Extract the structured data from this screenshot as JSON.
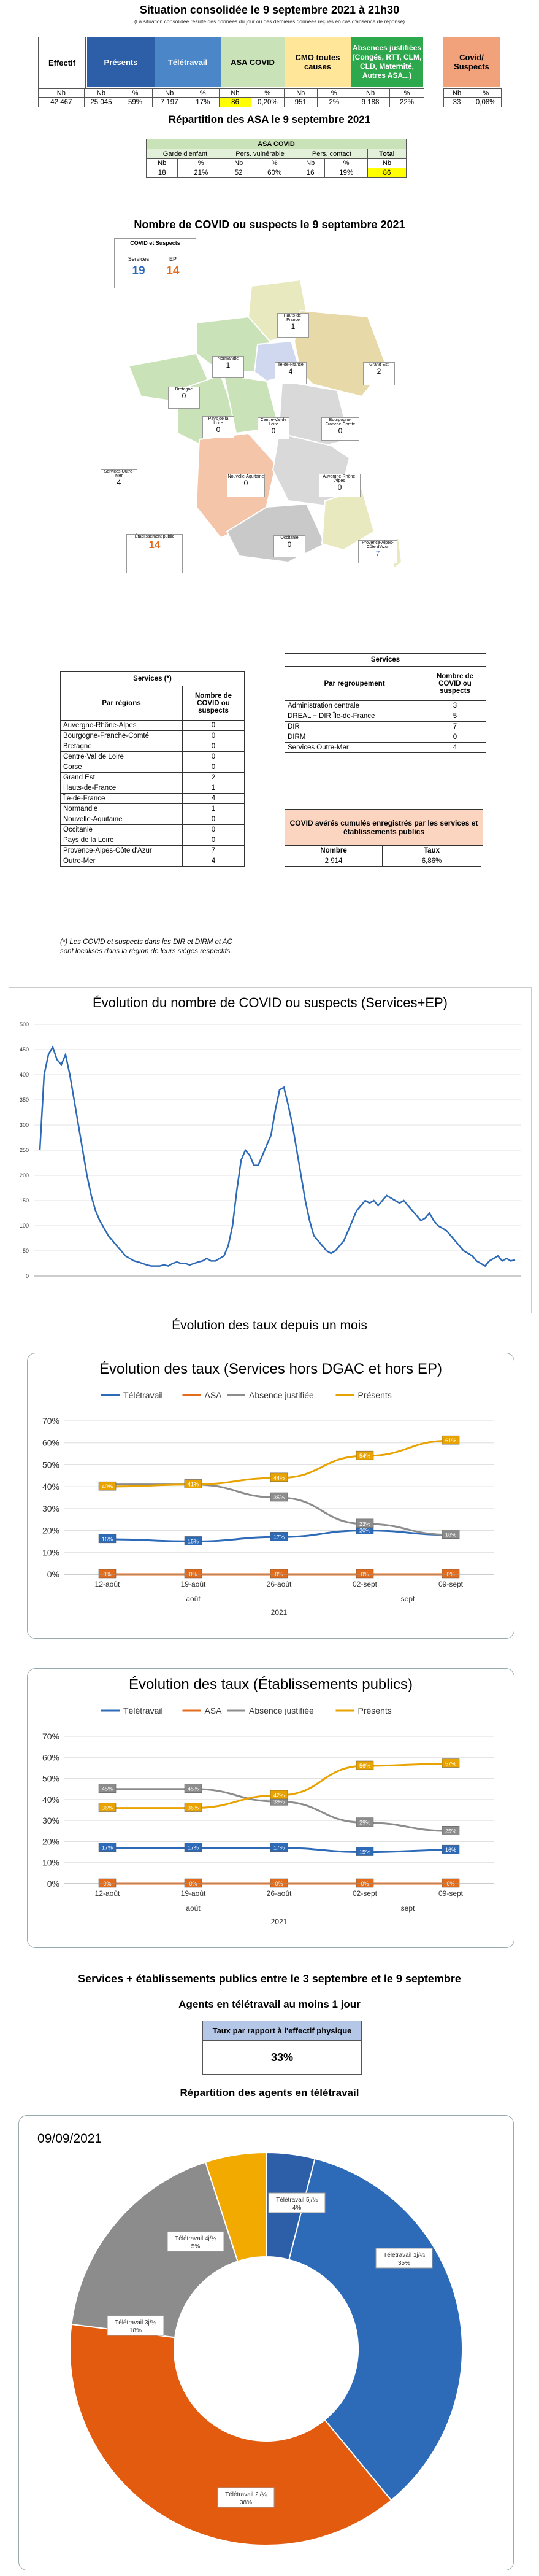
{
  "header": {
    "title": "Situation consolidée le 9 septembre 2021 à 21h30",
    "subtitle": "(La situation consolidée résulte des données du jour ou des dernières données reçues en cas d'absence de réponse)"
  },
  "summary": {
    "effectif_label": "Effectif",
    "effectif_value": "42 467",
    "presents_label": "Présents",
    "teletravail_label": "Télétravail",
    "asa_label": "ASA COVID",
    "cmo_label": "CMO toutes causes",
    "absences_label": "Absences justifiées (Congés, RTT, CLM, CLD, Maternité, Autres ASA...)",
    "covid_label": "Covid/ Suspects",
    "col_nb": "Nb",
    "col_pct": "%",
    "eff_nb": "Nb",
    "values": [
      "42 467",
      "25 045",
      "59%",
      "7 197",
      "17%",
      "86",
      "0,20%",
      "951",
      "2%",
      "9 188",
      "22%",
      "33",
      "0,08%"
    ]
  },
  "asa": {
    "title": "Répartition des ASA le 9 septembre 2021",
    "header": "ASA COVID",
    "groups": [
      "Garde d'enfant",
      "Pers. vulnérable",
      "Pers. contact",
      "Total"
    ],
    "sub": [
      "Nb",
      "%",
      "Nb",
      "%",
      "Nb",
      "%",
      "Nb"
    ],
    "values": [
      "18",
      "21%",
      "52",
      "60%",
      "16",
      "19%",
      "86"
    ]
  },
  "map": {
    "title": "Nombre de COVID ou suspects le 9 septembre 2021",
    "legend_title": "COVID et Suspects",
    "legend_services_label": "Services",
    "legend_ep_label": "EP",
    "legend_services_value": "19",
    "legend_ep_value": "14",
    "regions": [
      {
        "name": "Hauts-de-France",
        "value": "1"
      },
      {
        "name": "Normandie",
        "value": "1"
      },
      {
        "name": "Île-de-France",
        "value": "4"
      },
      {
        "name": "Grand Est",
        "value": "2"
      },
      {
        "name": "Bretagne",
        "value": "0"
      },
      {
        "name": "Pays de la Loire",
        "value": "0"
      },
      {
        "name": "Centre-Val de Loire",
        "value": "0"
      },
      {
        "name": "Bourgogne-Franche-Comté",
        "value": "0"
      },
      {
        "name": "Nouvelle-Aquitaine",
        "value": "0"
      },
      {
        "name": "Auvergne-Rhône-Alpes",
        "value": "0"
      },
      {
        "name": "Occitanie",
        "value": "0"
      },
      {
        "name": "Provence-Alpes-Côte d'Azur",
        "value": "7"
      },
      {
        "name": "Services Outre-Mer",
        "value": "4"
      },
      {
        "name": "Établissement public",
        "value": "14"
      }
    ]
  },
  "services_regions": {
    "title": "Services (*)",
    "col1": "Par régions",
    "col2": "Nombre de COVID ou suspects",
    "rows": [
      [
        "Auvergne-Rhône-Alpes",
        "0"
      ],
      [
        "Bourgogne-Franche-Comté",
        "0"
      ],
      [
        "Bretagne",
        "0"
      ],
      [
        "Centre-Val de Loire",
        "0"
      ],
      [
        "Corse",
        "0"
      ],
      [
        "Grand Est",
        "2"
      ],
      [
        "Hauts-de-France",
        "1"
      ],
      [
        "Île-de-France",
        "4"
      ],
      [
        "Normandie",
        "1"
      ],
      [
        "Nouvelle-Aquitaine",
        "0"
      ],
      [
        "Occitanie",
        "0"
      ],
      [
        "Pays de la Loire",
        "0"
      ],
      [
        "Provence-Alpes-Côte d'Azur",
        "7"
      ],
      [
        "Outre-Mer",
        "4"
      ]
    ],
    "note": "(*) Les COVID et suspects dans les DIR et DIRM et AC sont localisés dans la région de leurs sièges respectifs."
  },
  "services_groups": {
    "title": "Services",
    "col1": "Par regroupement",
    "col2": "Nombre de COVID ou suspects",
    "rows": [
      [
        "Administration centrale",
        "3"
      ],
      [
        "DREAL + DIR Île-de-France",
        "5"
      ],
      [
        "DIR",
        "7"
      ],
      [
        "DIRM",
        "0"
      ],
      [
        "Services Outre-Mer",
        "4"
      ]
    ]
  },
  "cumul": {
    "title": "COVID avérés cumulés enregistrés par les services et établissements publics",
    "col1": "Nombre",
    "col2": "Taux",
    "v1": "2 914",
    "v2": "6,86%"
  },
  "chart_data": [
    {
      "type": "line",
      "title": "Évolution du nombre de COVID ou suspects (Services+EP)",
      "ylim": [
        0,
        500
      ],
      "yticks": [
        0,
        50,
        100,
        150,
        200,
        250,
        300,
        350,
        400,
        450,
        500
      ],
      "series": [
        {
          "values": [
            250,
            400,
            440,
            455,
            430,
            420,
            440,
            400,
            350,
            300,
            250,
            200,
            160,
            130,
            110,
            95,
            80,
            70,
            60,
            50,
            40,
            35,
            30,
            28,
            25,
            22,
            20,
            20,
            20,
            22,
            20,
            25,
            28,
            25,
            25,
            22,
            25,
            28,
            30,
            35,
            30,
            30,
            35,
            40,
            60,
            100,
            170,
            230,
            250,
            240,
            220,
            220,
            240,
            260,
            280,
            330,
            370,
            375,
            340,
            300,
            250,
            200,
            150,
            110,
            80,
            70,
            60,
            50,
            45,
            50,
            60,
            70,
            90,
            110,
            130,
            140,
            150,
            145,
            150,
            140,
            150,
            160,
            155,
            150,
            145,
            150,
            140,
            130,
            120,
            110,
            115,
            125,
            110,
            100,
            95,
            90,
            80,
            70,
            60,
            50,
            45,
            40,
            30,
            25,
            20,
            30,
            35,
            40,
            30,
            35,
            30,
            32
          ]
        }
      ]
    },
    {
      "type": "line",
      "title": "Évolution des taux (Services hors DGAC et hors EP)",
      "categories": [
        "12-août",
        "19-août",
        "26-août",
        "02-sept",
        "09-sept"
      ],
      "ylim": [
        0,
        0.7
      ],
      "series": [
        {
          "name": "Télétravail",
          "color": "#2d6ab8",
          "values": [
            0.16,
            0.15,
            0.17,
            0.2,
            0.18
          ]
        },
        {
          "name": "ASA",
          "color": "#e36c1c",
          "values": [
            0,
            0,
            0,
            0,
            0
          ]
        },
        {
          "name": "Absence justifiée",
          "color": "#8c8c8c",
          "values": [
            0.41,
            0.41,
            0.35,
            0.23,
            0.18
          ]
        },
        {
          "name": "Présents",
          "color": "#e8a300",
          "values": [
            0.4,
            0.41,
            0.44,
            0.54,
            0.61
          ]
        }
      ],
      "labels": [
        [
          "16%",
          "15%",
          "17%",
          "20%",
          "18%"
        ],
        [
          "0%",
          "0%",
          "0%",
          "0%",
          "0%"
        ],
        [
          "",
          "41%",
          "35%",
          "23%",
          "18%"
        ],
        [
          "40%",
          "41%",
          "44%",
          "54%",
          "61%"
        ]
      ],
      "xgroups": [
        "août",
        "sept"
      ],
      "year": "2021"
    },
    {
      "type": "line",
      "title": "Évolution des taux (Établissements publics)",
      "categories": [
        "12-août",
        "19-août",
        "26-août",
        "02-sept",
        "09-sept"
      ],
      "ylim": [
        0,
        0.7
      ],
      "series": [
        {
          "name": "Télétravail",
          "color": "#2d6ab8",
          "values": [
            0.17,
            0.17,
            0.17,
            0.15,
            0.16
          ]
        },
        {
          "name": "ASA",
          "color": "#e36c1c",
          "values": [
            0,
            0,
            0,
            0,
            0
          ]
        },
        {
          "name": "Absence justifiée",
          "color": "#8c8c8c",
          "values": [
            0.45,
            0.45,
            0.39,
            0.29,
            0.25
          ]
        },
        {
          "name": "Présents",
          "color": "#e8a300",
          "values": [
            0.36,
            0.36,
            0.42,
            0.56,
            0.57
          ]
        }
      ],
      "labels": [
        [
          "17%",
          "17%",
          "17%",
          "15%",
          "16%"
        ],
        [
          "0%",
          "0%",
          "0%",
          "0%",
          "0%"
        ],
        [
          "45%",
          "45%",
          "39%",
          "29%",
          "25%"
        ],
        [
          "36%",
          "36%",
          "42%",
          "56%",
          "57%"
        ]
      ],
      "xgroups": [
        "août",
        "sept"
      ],
      "year": "2021"
    },
    {
      "type": "pie",
      "title": "09/09/2021",
      "categories": [
        "Télétravail 1j/¼",
        "Télétravail 2j/¼",
        "Télétravail 3j/¼",
        "Télétravail 4j/¼",
        "Télétravail 5j/¼"
      ],
      "values": [
        35,
        38,
        18,
        5,
        4
      ],
      "colors": [
        "#2d6ab8",
        "#e35b0e",
        "#8c8c8c",
        "#f2a900",
        "#2d5ea8"
      ],
      "labels": [
        "Télétravail 1j/¼\n35%",
        "Télétravail 2j/¼\n38%",
        "Télétravail 3j/¼\n18%",
        "Télétravail 4j/¼\n5%",
        "Télétravail 5j/¼\n4%"
      ]
    }
  ],
  "section_taux": {
    "title": "Évolution des taux depuis un mois"
  },
  "section_services_ep": {
    "title": "Services + établissements publics entre le 3 septembre et le 9 septembre"
  },
  "agents": {
    "title": "Agents en télétravail au moins 1 jour",
    "header": "Taux par rapport à l'effectif physique",
    "value": "33%"
  },
  "repartition": {
    "title": "Répartition des agents en télétravail"
  }
}
